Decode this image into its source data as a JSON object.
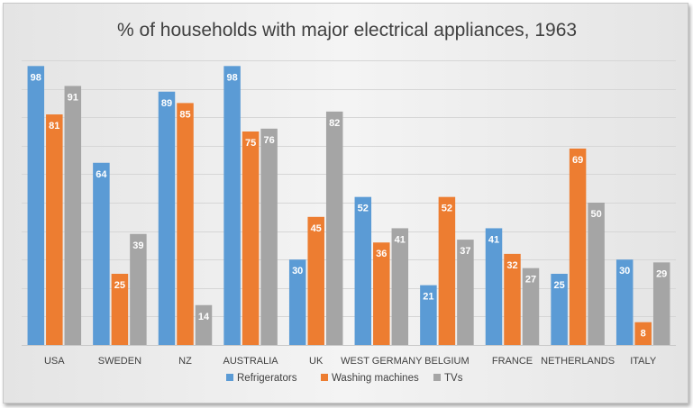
{
  "chart_data": {
    "type": "bar",
    "title": "% of households with major electrical appliances, 1963",
    "categories": [
      "USA",
      "SWEDEN",
      "NZ",
      "AUSTRALIA",
      "UK",
      "WEST GERMANY",
      "BELGIUM",
      "FRANCE",
      "NETHERLANDS",
      "ITALY"
    ],
    "series": [
      {
        "name": "Refrigerators",
        "color": "#5B9BD5",
        "values": [
          98,
          64,
          89,
          98,
          30,
          52,
          21,
          41,
          25,
          30
        ]
      },
      {
        "name": "Washing machines",
        "color": "#ED7D31",
        "values": [
          81,
          25,
          85,
          75,
          45,
          36,
          52,
          32,
          69,
          8
        ]
      },
      {
        "name": "TVs",
        "color": "#A5A5A5",
        "values": [
          91,
          39,
          14,
          76,
          82,
          41,
          37,
          27,
          50,
          29
        ]
      }
    ],
    "ylim": [
      0,
      100
    ],
    "gridlines": true,
    "xlabel": "",
    "ylabel": "",
    "legend_position": "bottom",
    "data_labels": true
  }
}
